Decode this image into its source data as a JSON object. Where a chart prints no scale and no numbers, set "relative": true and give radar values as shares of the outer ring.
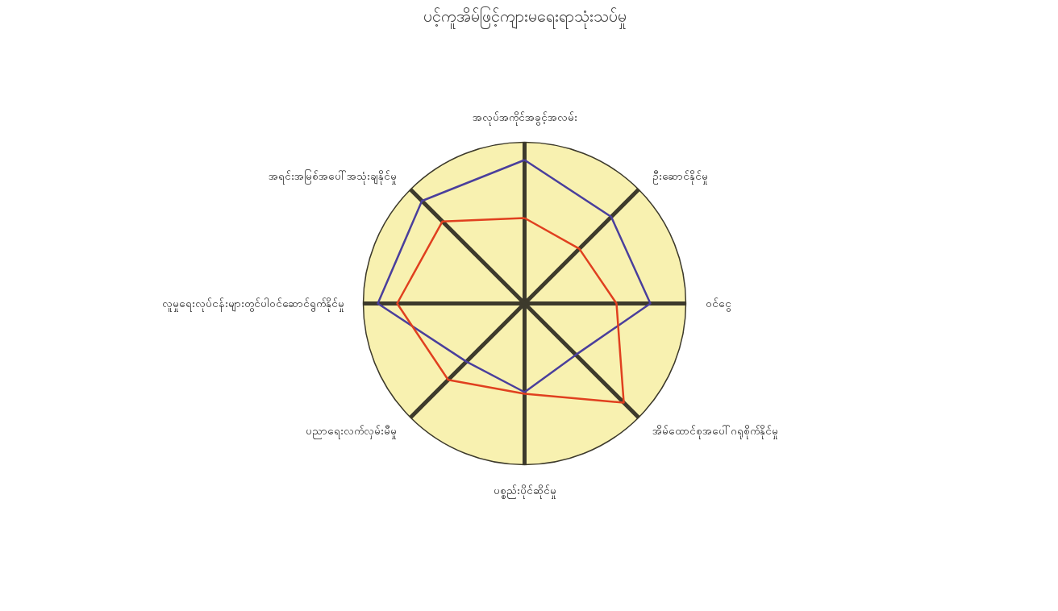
{
  "chart_data": {
    "type": "radar",
    "title": "ပင့်ကူအိမ်ဖြင့်ကျားမရေးရာသုံးသပ်မှု",
    "relative": true,
    "marker": "none",
    "categories": [
      "အလုပ်အကိုင်အခွင့်အလမ်း",
      "ဦးဆောင်နိုင်မှု",
      "ဝင်ငွေ",
      "အိမ်ထောင်စုအပေါ်ဂရုစိုက်နိုင်မှု",
      "ပစ္စည်းပိုင်ဆိုင်မှု",
      "ပညာရေးလက်လှမ်းမီမှု",
      "လူမှုရေးလုပ်ငန်းများတွင်ပါဝင်ဆောင်ရွက်နိုင်မှု",
      "အရင်းအမြစ်အပေါ်အသုံးချနိုင်မှု"
    ],
    "series": [
      {
        "color": "#4a3f9c",
        "values": [
          0.89,
          0.76,
          0.78,
          0.45,
          0.55,
          0.51,
          0.91,
          0.9
        ]
      },
      {
        "color": "#e0401f",
        "values": [
          0.53,
          0.48,
          0.57,
          0.87,
          0.56,
          0.67,
          0.79,
          0.72
        ]
      }
    ]
  }
}
